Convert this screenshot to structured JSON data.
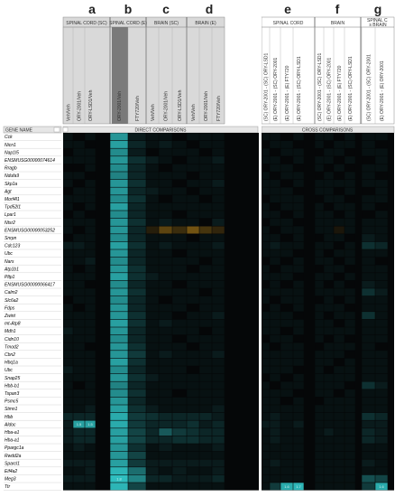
{
  "chart_data": {
    "type": "heatmap",
    "panel_letters": [
      "a",
      "b",
      "c",
      "d",
      "e",
      "f",
      "g"
    ],
    "groups": [
      {
        "label": "SPINAL CORD (SC)",
        "cols": [
          0,
          1,
          2
        ]
      },
      {
        "label": "SPINAL CORD (E)",
        "cols": [
          3,
          4
        ]
      },
      {
        "label": "BRAIN (SC)",
        "cols": [
          5,
          6,
          7
        ]
      },
      {
        "label": "BRAIN (E)",
        "cols": [
          8,
          9,
          10
        ]
      },
      {
        "label": "SPINAL CORD",
        "cols": [
          11,
          12,
          13,
          14
        ]
      },
      {
        "label": "BRAIN",
        "cols": [
          15,
          16,
          17,
          18
        ]
      },
      {
        "label": "SPINAL C vs BRAIN",
        "cols": [
          19,
          20
        ]
      }
    ],
    "columns": [
      "Veh/Veh",
      "ORY-2001/Veh",
      "ORY-LSD1/Veh",
      "ORY-2001/Veh",
      "FTY720/Veh",
      "Veh/Veh",
      "ORY-2001/Veh",
      "ORY-LSD1/Veh",
      "Veh/Veh",
      "ORY-2001/Veh",
      "FTY720/Veh",
      "(SC) ORY-2001 - (SC) ORY-LSD1",
      "(E) ORY-2001 - (SC) ORY-2001",
      "(E) ORY-2001 - (E) FTY720",
      "(E) ORY-2001 - (SC) ORY-LSD1",
      "(SC) ORY-2001 - (SC) ORY-LSD1",
      "(E) ORY-2001 - (SC) ORY-2001",
      "(E) ORY-2001 - (E) FTY720",
      "(E) ORY-2001 - (SC) ORY-LSD1",
      "(SC) ORY-2001 - (SC) ORY-2001",
      "(E) ORY-2001 - (E) ORY-2001"
    ],
    "gene_header": "GENE NAME",
    "section_labels": [
      "DIRECT COMPARISONS",
      "CROSS COMPARISONS"
    ],
    "rows": [
      "Cck",
      "Nicn1",
      "Nap1l5",
      "ENSMUSG00000074614",
      "Rragb",
      "Ndufa9",
      "Skp1a",
      "Agt",
      "Morf4l1",
      "Tpd52l1",
      "Lpar1",
      "Ntsr2",
      "ENSMUSG00000053252",
      "Snrpn",
      "Cdc123",
      "Ubc",
      "Nars",
      "Atp1b1",
      "Pltp1",
      "ENSMUSG00000066417",
      "Calm2",
      "Slc6a2",
      "Fdps",
      "Zwint",
      "mt-Atp8",
      "Mdh1",
      "Cidn10",
      "Tmod2",
      "Cbn2",
      "Hbq1a",
      "Ubc",
      "Snap25",
      "Hbb-b1",
      "Tspan3",
      "Psmc5",
      "Stmn1",
      "Hbb",
      "Aldoc",
      "Hba-a1",
      "Hba-a1",
      "Ppargc1a",
      "Rwdd2a",
      "Sparcl1",
      "Eif4a2",
      "Meg3",
      "Ttr"
    ],
    "values": [
      [
        0.1,
        0.0,
        0.1,
        1.4,
        0.2,
        0.1,
        0.1,
        0.0,
        0.1,
        0.1,
        0.1,
        0.1,
        0.1,
        0.0,
        0.1,
        0.1,
        0.1,
        0.0,
        0.1,
        0.1,
        0.1
      ],
      [
        0.1,
        0.1,
        0.0,
        1.5,
        0.3,
        0.1,
        0.2,
        0.1,
        0.0,
        0.1,
        0.1,
        0.0,
        0.1,
        0.1,
        0.0,
        0.1,
        0.0,
        0.1,
        0.1,
        0.1,
        0.0
      ],
      [
        0.0,
        0.1,
        0.1,
        1.3,
        0.2,
        0.0,
        0.1,
        0.1,
        0.1,
        0.0,
        0.1,
        0.1,
        0.0,
        0.1,
        0.1,
        0.0,
        0.1,
        0.1,
        0.0,
        0.1,
        0.1
      ],
      [
        0.1,
        0.1,
        0.1,
        1.4,
        0.4,
        0.2,
        0.1,
        0.0,
        0.1,
        0.1,
        0.2,
        0.1,
        0.1,
        0.0,
        0.1,
        0.1,
        0.1,
        0.0,
        0.1,
        0.0,
        0.1
      ],
      [
        0.0,
        0.0,
        0.1,
        1.3,
        0.3,
        0.1,
        0.0,
        0.1,
        0.1,
        0.1,
        0.1,
        0.0,
        0.1,
        0.1,
        0.0,
        0.1,
        0.0,
        0.1,
        0.0,
        0.1,
        0.1
      ],
      [
        0.1,
        0.1,
        0.0,
        1.2,
        0.3,
        0.1,
        0.1,
        0.1,
        0.0,
        0.1,
        0.1,
        0.1,
        0.0,
        0.1,
        0.1,
        0.0,
        0.1,
        0.0,
        0.1,
        0.1,
        0.0
      ],
      [
        0.1,
        0.0,
        0.1,
        1.4,
        0.4,
        0.1,
        0.1,
        0.0,
        0.1,
        0.1,
        0.2,
        0.1,
        0.1,
        0.0,
        0.1,
        0.1,
        0.1,
        0.1,
        0.1,
        0.1,
        0.1
      ],
      [
        0.0,
        0.1,
        0.1,
        1.4,
        0.3,
        0.2,
        0.1,
        0.1,
        0.0,
        0.1,
        0.1,
        0.1,
        0.1,
        0.1,
        0.0,
        0.1,
        0.1,
        0.0,
        0.1,
        0.0,
        0.1
      ],
      [
        0.1,
        0.1,
        0.1,
        1.3,
        0.4,
        0.1,
        0.0,
        0.1,
        0.1,
        0.0,
        0.1,
        0.0,
        0.1,
        0.1,
        0.1,
        0.0,
        0.1,
        0.1,
        0.0,
        0.1,
        0.1
      ],
      [
        0.1,
        0.0,
        0.1,
        1.5,
        0.3,
        0.1,
        0.1,
        0.1,
        0.1,
        0.1,
        0.1,
        0.1,
        0.0,
        0.1,
        0.1,
        0.1,
        0.0,
        0.1,
        0.1,
        0.1,
        0.0
      ],
      [
        0.0,
        0.1,
        0.0,
        1.3,
        0.3,
        0.1,
        0.1,
        0.0,
        0.1,
        0.1,
        0.1,
        0.1,
        0.1,
        0.0,
        0.1,
        0.1,
        0.1,
        0.0,
        0.1,
        0.0,
        0.1
      ],
      [
        0.1,
        0.1,
        0.1,
        1.4,
        0.4,
        0.1,
        0.2,
        0.1,
        0.1,
        0.0,
        0.2,
        0.0,
        0.1,
        0.1,
        0.0,
        0.1,
        0.1,
        0.1,
        0.1,
        0.1,
        0.1
      ],
      [
        0.1,
        0.0,
        0.1,
        1.4,
        0.3,
        -0.3,
        -0.8,
        -0.5,
        -1.0,
        -0.6,
        -0.4,
        0.1,
        0.0,
        0.1,
        0.1,
        0.1,
        0.1,
        -0.2,
        0.1,
        0.1,
        0.1
      ],
      [
        0.0,
        0.1,
        0.1,
        1.3,
        0.3,
        0.1,
        0.1,
        0.1,
        0.0,
        0.1,
        0.1,
        0.1,
        0.1,
        0.0,
        0.1,
        0.0,
        0.1,
        0.1,
        0.0,
        0.2,
        0.1
      ],
      [
        0.2,
        0.2,
        0.1,
        1.5,
        0.4,
        0.1,
        0.2,
        0.1,
        0.1,
        0.1,
        0.2,
        0.1,
        0.2,
        0.1,
        0.1,
        0.1,
        0.1,
        0.0,
        0.1,
        0.4,
        0.3
      ],
      [
        0.1,
        0.1,
        0.1,
        1.4,
        0.3,
        0.1,
        0.1,
        0.0,
        0.1,
        0.1,
        0.1,
        0.1,
        0.1,
        0.1,
        0.0,
        0.1,
        0.0,
        0.1,
        0.1,
        0.1,
        0.1
      ],
      [
        0.1,
        0.1,
        0.2,
        1.3,
        0.3,
        0.1,
        0.1,
        0.1,
        0.1,
        0.0,
        0.1,
        0.0,
        0.1,
        0.0,
        0.1,
        0.1,
        0.1,
        0.0,
        0.1,
        0.1,
        0.0
      ],
      [
        0.1,
        0.0,
        0.1,
        1.4,
        0.4,
        0.1,
        0.1,
        0.1,
        0.0,
        0.1,
        0.1,
        0.1,
        0.0,
        0.1,
        0.1,
        0.0,
        0.1,
        0.1,
        0.0,
        0.1,
        0.1
      ],
      [
        0.1,
        0.1,
        0.1,
        1.5,
        0.4,
        0.2,
        0.1,
        0.1,
        0.1,
        0.1,
        0.1,
        0.1,
        0.1,
        0.1,
        0.0,
        0.1,
        0.1,
        0.0,
        0.1,
        0.1,
        0.1
      ],
      [
        0.1,
        0.1,
        0.0,
        1.3,
        0.3,
        0.1,
        0.1,
        0.0,
        0.1,
        0.1,
        0.1,
        0.0,
        0.1,
        0.0,
        0.1,
        0.1,
        0.0,
        0.1,
        0.0,
        0.2,
        0.1
      ],
      [
        0.1,
        0.1,
        0.1,
        1.4,
        0.4,
        0.1,
        0.1,
        0.1,
        0.1,
        0.0,
        0.1,
        0.1,
        0.1,
        0.1,
        0.1,
        0.1,
        0.1,
        0.1,
        0.1,
        0.4,
        0.2
      ],
      [
        0.0,
        0.1,
        0.1,
        1.3,
        0.3,
        0.1,
        0.0,
        0.1,
        0.1,
        0.1,
        0.1,
        0.1,
        0.0,
        0.1,
        0.1,
        0.0,
        0.1,
        0.0,
        0.1,
        0.1,
        0.1
      ],
      [
        0.1,
        0.0,
        0.1,
        1.4,
        0.3,
        0.1,
        0.1,
        0.1,
        0.0,
        0.1,
        0.1,
        0.0,
        0.1,
        0.0,
        0.1,
        0.1,
        0.1,
        0.1,
        0.0,
        0.1,
        0.1
      ],
      [
        0.1,
        0.1,
        0.1,
        1.4,
        0.4,
        0.1,
        0.1,
        0.0,
        0.1,
        0.1,
        0.2,
        0.1,
        0.1,
        0.1,
        0.0,
        0.1,
        0.0,
        0.1,
        0.1,
        0.4,
        0.1
      ],
      [
        0.1,
        0.1,
        0.1,
        1.5,
        0.4,
        0.1,
        0.2,
        0.1,
        0.1,
        0.1,
        0.1,
        0.1,
        0.1,
        0.1,
        0.1,
        0.1,
        0.1,
        0.0,
        0.1,
        0.1,
        0.1
      ],
      [
        0.2,
        0.1,
        0.1,
        1.4,
        0.3,
        0.1,
        0.1,
        0.1,
        0.1,
        0.0,
        0.1,
        0.1,
        0.1,
        0.0,
        0.1,
        0.1,
        0.1,
        0.1,
        0.1,
        0.1,
        0.1
      ],
      [
        0.1,
        0.1,
        0.1,
        1.3,
        0.3,
        0.1,
        0.1,
        0.0,
        0.1,
        0.1,
        0.1,
        0.0,
        0.1,
        0.1,
        0.0,
        0.1,
        0.0,
        0.1,
        0.0,
        0.1,
        0.1
      ],
      [
        0.1,
        0.1,
        0.0,
        1.4,
        0.4,
        0.1,
        0.1,
        0.1,
        0.0,
        0.1,
        0.1,
        0.1,
        0.0,
        0.1,
        0.1,
        0.0,
        0.1,
        0.1,
        0.1,
        0.1,
        0.0
      ],
      [
        0.1,
        0.1,
        0.1,
        1.4,
        0.5,
        0.1,
        0.2,
        0.1,
        0.1,
        0.1,
        0.2,
        0.1,
        0.1,
        0.1,
        0.1,
        0.1,
        0.1,
        0.1,
        0.0,
        0.1,
        0.1
      ],
      [
        0.1,
        0.1,
        0.1,
        1.5,
        0.4,
        0.1,
        0.1,
        0.1,
        0.1,
        0.1,
        0.1,
        0.1,
        0.1,
        0.1,
        0.1,
        0.1,
        0.1,
        0.0,
        0.1,
        0.1,
        0.1
      ],
      [
        0.2,
        0.1,
        0.1,
        1.3,
        0.3,
        0.1,
        0.1,
        0.1,
        0.0,
        0.1,
        0.1,
        0.1,
        0.1,
        0.1,
        0.0,
        0.1,
        0.0,
        0.1,
        0.1,
        0.1,
        0.1
      ],
      [
        0.1,
        0.1,
        0.1,
        1.4,
        0.4,
        0.2,
        0.1,
        0.1,
        0.1,
        0.1,
        0.1,
        0.0,
        0.1,
        0.0,
        0.1,
        0.1,
        0.1,
        0.1,
        0.1,
        0.1,
        0.1
      ],
      [
        0.1,
        0.0,
        0.1,
        1.2,
        0.3,
        0.1,
        0.1,
        0.1,
        0.1,
        0.1,
        0.1,
        0.1,
        0.0,
        0.1,
        0.1,
        0.1,
        0.1,
        0.1,
        0.0,
        0.4,
        0.2
      ],
      [
        0.1,
        0.1,
        0.1,
        1.3,
        0.4,
        0.1,
        0.1,
        0.0,
        0.1,
        0.1,
        0.1,
        0.1,
        0.1,
        0.1,
        0.0,
        0.1,
        0.1,
        0.0,
        0.1,
        0.1,
        0.1
      ],
      [
        0.1,
        0.1,
        0.1,
        1.4,
        0.3,
        0.1,
        0.1,
        0.1,
        0.1,
        0.1,
        0.1,
        0.1,
        0.1,
        0.0,
        0.1,
        0.0,
        0.1,
        0.1,
        0.1,
        0.1,
        0.1
      ],
      [
        0.1,
        0.1,
        0.2,
        1.5,
        0.4,
        0.2,
        0.1,
        0.1,
        0.1,
        0.1,
        0.2,
        0.1,
        0.1,
        0.1,
        0.1,
        0.1,
        0.1,
        0.1,
        0.1,
        0.1,
        0.1
      ],
      [
        0.3,
        0.3,
        0.3,
        1.6,
        0.5,
        0.4,
        0.3,
        0.3,
        0.3,
        0.3,
        0.2,
        0.1,
        0.2,
        0.1,
        0.1,
        0.1,
        0.1,
        0.1,
        0.1,
        0.4,
        0.3
      ],
      [
        0.2,
        1.5,
        1.5,
        1.6,
        0.5,
        0.3,
        0.3,
        0.3,
        0.4,
        0.2,
        0.3,
        0.2,
        0.2,
        0.1,
        0.2,
        0.1,
        0.1,
        0.1,
        0.1,
        0.2,
        0.2
      ],
      [
        0.2,
        0.3,
        0.3,
        1.5,
        0.6,
        0.3,
        0.8,
        0.5,
        0.4,
        0.3,
        0.3,
        0.1,
        0.2,
        0.1,
        0.1,
        0.1,
        0.2,
        0.1,
        0.1,
        0.3,
        0.2
      ],
      [
        0.2,
        0.3,
        0.3,
        1.5,
        0.6,
        0.3,
        0.3,
        0.4,
        0.4,
        0.3,
        0.3,
        0.1,
        0.2,
        0.1,
        0.1,
        0.1,
        0.1,
        0.1,
        0.1,
        0.3,
        0.2
      ],
      [
        0.1,
        0.2,
        0.1,
        1.4,
        0.4,
        0.1,
        0.2,
        0.1,
        0.1,
        0.1,
        0.2,
        0.1,
        0.1,
        0.1,
        0.1,
        0.1,
        0.1,
        0.1,
        0.1,
        0.1,
        0.1
      ],
      [
        0.1,
        0.1,
        0.1,
        1.4,
        0.6,
        0.1,
        0.1,
        0.1,
        0.1,
        0.1,
        0.1,
        0.1,
        0.1,
        0.1,
        0.1,
        0.1,
        0.1,
        0.1,
        0.1,
        0.1,
        0.1
      ],
      [
        0.2,
        0.2,
        0.2,
        1.5,
        0.5,
        0.2,
        0.2,
        0.2,
        0.2,
        0.2,
        0.2,
        0.1,
        0.2,
        0.1,
        0.1,
        0.1,
        0.1,
        0.1,
        0.1,
        0.2,
        0.1
      ],
      [
        0.1,
        0.1,
        0.2,
        1.7,
        1.0,
        0.2,
        0.1,
        0.2,
        0.1,
        0.1,
        0.2,
        0.1,
        0.1,
        0.1,
        0.1,
        0.1,
        0.1,
        0.1,
        0.1,
        0.1,
        0.1
      ],
      [
        0.2,
        0.2,
        0.2,
        1.8,
        1.2,
        0.3,
        0.3,
        0.2,
        0.2,
        0.2,
        0.3,
        0.1,
        0.1,
        0.1,
        0.1,
        0.1,
        0.1,
        0.1,
        0.1,
        0.7,
        0.6
      ],
      [
        0.1,
        0.1,
        0.1,
        1.7,
        0.6,
        0.1,
        0.1,
        0.1,
        0.1,
        0.1,
        0.1,
        0.1,
        0.5,
        1.6,
        1.7,
        0.1,
        0.1,
        0.1,
        0.1,
        0.5,
        1.6
      ]
    ],
    "cell_labels": [
      {
        "r": 37,
        "c": 1,
        "text": "1.5"
      },
      {
        "r": 37,
        "c": 2,
        "text": "1.5"
      },
      {
        "r": 44,
        "c": 3,
        "text": "1.8"
      },
      {
        "r": 45,
        "c": 13,
        "text": "1.6"
      },
      {
        "r": 45,
        "c": 14,
        "text": "1.7"
      },
      {
        "r": 45,
        "c": 20,
        "text": "1.6"
      }
    ],
    "colors": {
      "high": "#2fbfc0",
      "dark": "#050708",
      "low": "#c9901a",
      "highlight": "#7a7a7a",
      "header": "#d9d9d9"
    }
  }
}
